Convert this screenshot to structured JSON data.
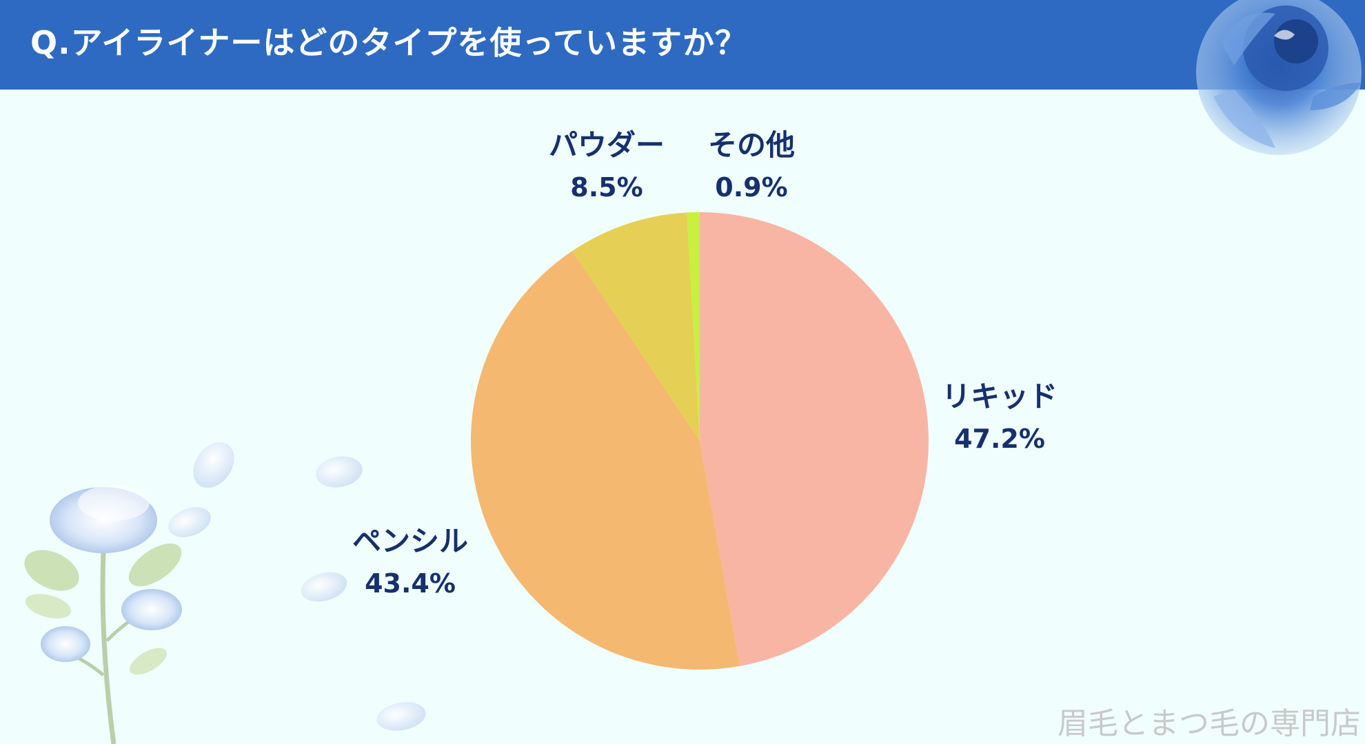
{
  "header": {
    "title": "Q.アイライナーはどのタイプを使っていますか？"
  },
  "watermark": "眉毛とまつ毛の専門店",
  "chart_data": {
    "type": "pie",
    "title": "",
    "start": "12 o'clock",
    "direction": "clockwise",
    "slices": [
      {
        "label": "リキッド",
        "value": 47.2,
        "value_label": "47.2%",
        "color": "#f9b5a3"
      },
      {
        "label": "ペンシル",
        "value": 43.4,
        "value_label": "43.4%",
        "color": "#f5b870"
      },
      {
        "label": "パウダー",
        "value": 8.5,
        "value_label": "8.5%",
        "color": "#e6cf55"
      },
      {
        "label": "その他",
        "value": 0.9,
        "value_label": "0.9%",
        "color": "#c8f03c"
      }
    ]
  },
  "colors": {
    "header_bg": "#2e6ac2",
    "background": "#f0fefe",
    "label_text": "#16306e",
    "rose_decoration": "#7fa8dd"
  },
  "decorations": {
    "top_right": "blue-rose-illustration",
    "bottom_left": "blue-rose-stem-illustration",
    "petals": "scattered-petals"
  }
}
